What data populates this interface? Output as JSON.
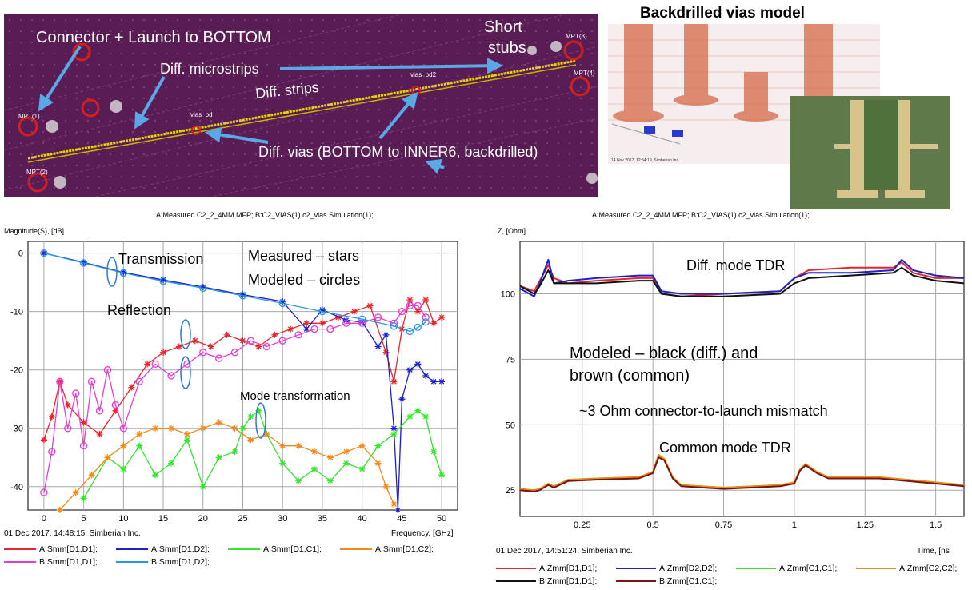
{
  "pcb": {
    "labels": {
      "connector": "Connector + Launch to BOTTOM",
      "microstrips": "Diff. microstrips",
      "strips": "Diff. strips",
      "short": "Short",
      "stubs": "stubs",
      "vias": "Diff. vias (BOTTOM to INNER6, backdrilled)",
      "via_bd": "vias_bd",
      "via_bd2": "vias_bd2",
      "mpt1": "MPT(1)",
      "mpt2": "MPT(2)",
      "mpt3": "MPT(3)",
      "mpt4": "MPT(4)"
    },
    "colors": {
      "board": "#5a1c54",
      "trace": "#e8d400",
      "arrow": "#5aa8e6",
      "text": "#ffffff"
    }
  },
  "model": {
    "title": "Backdrilled vias model",
    "timestamp": "14 Nov 2017, 12:54:19, Simberian Inc."
  },
  "left_chart": {
    "header": "A:Measured.C2_2_4MM.MFP; B:C2_VIAS(1).c2_vias.Simulation(1);",
    "ylabel": "Magnitude(S), [dB]",
    "xlabel": "Frequency, [GHz]",
    "footer": "01 Dec 2017, 14:48:15, Simberian Inc.",
    "annotations": {
      "transmission": "Transmission",
      "measured": "Measured – stars",
      "modeled": "Modeled – circles",
      "reflection": "Reflection",
      "mode": "Mode transformation"
    },
    "legend": [
      {
        "label": "A:Smm[D1,D1];",
        "color": "#e8262b",
        "marker": "star"
      },
      {
        "label": "A:Smm[D1,D2];",
        "color": "#1c22c8",
        "marker": "star"
      },
      {
        "label": "A:Smm[D1,C1];",
        "color": "#32e62a",
        "marker": "star"
      },
      {
        "label": "A:Smm[D1,C2];",
        "color": "#f08a1c",
        "marker": "star"
      },
      {
        "label": "B:Smm[D1,D1];",
        "color": "#e63ad2",
        "marker": "circle"
      },
      {
        "label": "B:Smm[D1,D2];",
        "color": "#2a96e6",
        "marker": "circle"
      }
    ]
  },
  "right_chart": {
    "header": "A:Measured.C2_2_4MM.MFP; B:C2_VIAS(1).c2_vias.Simulation(1);",
    "ylabel": "Z, [Ohm]",
    "xlabel": "Time, [ns",
    "footer": "01 Dec 2017, 14:51:24, Simberian Inc.",
    "annotations": {
      "diff": "Diff. mode TDR",
      "modeled1": "Modeled – black (diff.) and",
      "modeled2": "brown (common)",
      "mismatch": "~3 Ohm connector-to-launch mismatch",
      "common": "Common mode TDR"
    },
    "legend": [
      {
        "label": "A:Zmm[D1,D1];",
        "color": "#e8262b"
      },
      {
        "label": "A:Zmm[D2,D2];",
        "color": "#1c22c8"
      },
      {
        "label": "A:Zmm[C1,C1];",
        "color": "#32e62a"
      },
      {
        "label": "A:Zmm[C2,C2];",
        "color": "#f08a1c"
      },
      {
        "label": "B:Zmm[D1,D1];",
        "color": "#111111"
      },
      {
        "label": "B:Zmm[C1,C1];",
        "color": "#7a1414"
      }
    ]
  },
  "chart_data": [
    {
      "type": "line",
      "xlabel": "Frequency, [GHz]",
      "ylabel": "Magnitude(S), [dB]",
      "xlim": [
        -2,
        52
      ],
      "ylim": [
        -44,
        2
      ],
      "xticks": [
        0,
        5,
        10,
        15,
        20,
        25,
        30,
        35,
        40,
        45,
        50
      ],
      "yticks": [
        0,
        -10,
        -20,
        -30,
        -40
      ],
      "grid": true,
      "series": [
        {
          "name": "A:Smm[D1,D1];",
          "color": "#e8262b",
          "marker": "star",
          "x": [
            0,
            1,
            2,
            3,
            5,
            7,
            9,
            11,
            13,
            15,
            17,
            19,
            21,
            23,
            25,
            27,
            29,
            31,
            33,
            35,
            37,
            39,
            41,
            43,
            44,
            45,
            46,
            47,
            48,
            49,
            50
          ],
          "y": [
            -32,
            -28,
            -22,
            -26,
            -29,
            -31,
            -27,
            -23,
            -19,
            -17,
            -16,
            -15,
            -16,
            -14,
            -15,
            -16,
            -14,
            -13,
            -12,
            -12,
            -11,
            -10,
            -9,
            -17,
            -22,
            -13,
            -8,
            -10,
            -8,
            -12,
            -11
          ]
        },
        {
          "name": "A:Smm[D1,D2];",
          "color": "#1c22c8",
          "marker": "star",
          "x": [
            0,
            5,
            10,
            15,
            20,
            25,
            30,
            33,
            35,
            38,
            40,
            42,
            43,
            44,
            44.5,
            45,
            46,
            47,
            48,
            49,
            50
          ],
          "y": [
            0,
            -1.6,
            -3.3,
            -4.6,
            -5.8,
            -7.1,
            -8.3,
            -13,
            -9.7,
            -11.5,
            -11.8,
            -16,
            -14,
            -30,
            -44,
            -25,
            -20,
            -19,
            -21,
            -22,
            -22
          ]
        },
        {
          "name": "A:Smm[D1,C1];",
          "color": "#32e62a",
          "marker": "star",
          "x": [
            5,
            8,
            10,
            12,
            14,
            16,
            18,
            20,
            22,
            24,
            25,
            26,
            27,
            28,
            30,
            32,
            34,
            36,
            38,
            40,
            42,
            44,
            46,
            47,
            48,
            49,
            50
          ],
          "y": [
            -42,
            -35,
            -37,
            -33,
            -38,
            -36,
            -32,
            -40,
            -35,
            -34,
            -30,
            -28,
            -27,
            -31,
            -36,
            -39,
            -37,
            -39,
            -36,
            -37,
            -33,
            -31,
            -28,
            -27,
            -28,
            -34,
            -38
          ]
        },
        {
          "name": "A:Smm[D1,C2];",
          "color": "#f08a1c",
          "marker": "star",
          "x": [
            2,
            4,
            6,
            8,
            10,
            12,
            14,
            16,
            18,
            20,
            22,
            24,
            26,
            28,
            30,
            32,
            34,
            36,
            38,
            40,
            42,
            43,
            44
          ],
          "y": [
            -44,
            -41,
            -38,
            -35,
            -33,
            -31,
            -30,
            -30,
            -31,
            -30,
            -29,
            -30,
            -32,
            -31,
            -33,
            -33,
            -34,
            -35,
            -34,
            -33,
            -36,
            -40,
            -43
          ]
        },
        {
          "name": "B:Smm[D1,D1];",
          "color": "#e63ad2",
          "marker": "circle",
          "x": [
            0,
            1,
            2,
            3,
            4,
            5,
            6,
            7,
            8,
            9,
            10,
            12,
            14,
            16,
            18,
            20,
            22,
            24,
            26,
            28,
            30,
            32,
            34,
            36,
            38,
            40,
            42,
            44,
            45,
            46,
            47,
            48
          ],
          "y": [
            -41,
            -34,
            -22,
            -30,
            -24,
            -33,
            -22,
            -27,
            -20,
            -26,
            -30,
            -22,
            -19,
            -21,
            -19,
            -17,
            -18,
            -17,
            -15,
            -16,
            -15,
            -14,
            -13,
            -13,
            -12,
            -12,
            -11,
            -12,
            -10,
            -9,
            -9,
            -11
          ]
        },
        {
          "name": "B:Smm[D1,D2];",
          "color": "#2a96e6",
          "marker": "circle",
          "x": [
            0,
            5,
            10,
            15,
            20,
            25,
            30,
            35,
            40,
            44,
            46,
            47,
            48
          ],
          "y": [
            0,
            -1.7,
            -3.4,
            -4.8,
            -6.0,
            -7.3,
            -8.6,
            -10.0,
            -11.3,
            -12.5,
            -13.4,
            -12.7,
            -11.8
          ]
        }
      ]
    },
    {
      "type": "line",
      "xlabel": "Time, [ns",
      "ylabel": "Z, [Ohm]",
      "xlim": [
        0.03,
        1.6
      ],
      "ylim": [
        15,
        120
      ],
      "xticks": [
        0.25,
        0.5,
        0.75,
        1,
        1.25,
        1.5
      ],
      "yticks": [
        25,
        50,
        75,
        100
      ],
      "grid": true,
      "series": [
        {
          "name": "A:Zmm[D1,D1];",
          "color": "#e8262b",
          "x": [
            0.03,
            0.08,
            0.1,
            0.13,
            0.15,
            0.2,
            0.3,
            0.45,
            0.5,
            0.53,
            0.6,
            0.75,
            0.95,
            1.0,
            1.05,
            1.2,
            1.35,
            1.38,
            1.42,
            1.5,
            1.6
          ],
          "y": [
            103,
            101,
            105,
            111,
            106,
            104,
            105,
            106,
            106,
            100,
            99,
            100,
            101,
            106,
            109,
            110,
            110,
            112,
            108,
            106,
            106
          ]
        },
        {
          "name": "A:Zmm[D2,D2];",
          "color": "#1c22c8",
          "x": [
            0.03,
            0.08,
            0.1,
            0.13,
            0.15,
            0.2,
            0.3,
            0.45,
            0.5,
            0.53,
            0.6,
            0.75,
            0.95,
            1.0,
            1.05,
            1.2,
            1.35,
            1.38,
            1.42,
            1.5,
            1.6
          ],
          "y": [
            102,
            99,
            104,
            113,
            104,
            105,
            106,
            107,
            107,
            101,
            100,
            100,
            101,
            106,
            108,
            108,
            109,
            113,
            109,
            107,
            106
          ]
        },
        {
          "name": "B:Zmm[D1,D1];",
          "color": "#111111",
          "x": [
            0.03,
            0.08,
            0.1,
            0.13,
            0.15,
            0.2,
            0.3,
            0.45,
            0.5,
            0.53,
            0.6,
            0.75,
            0.95,
            1.0,
            1.05,
            1.2,
            1.35,
            1.38,
            1.42,
            1.5,
            1.6
          ],
          "y": [
            103,
            100,
            103,
            109,
            104,
            104,
            104,
            105,
            105,
            100,
            99,
            99,
            100,
            104,
            106,
            107,
            108,
            110,
            107,
            105,
            104
          ]
        },
        {
          "name": "A:Zmm[C1,C1];",
          "color": "#32e62a",
          "x": [
            0.03,
            0.08,
            0.1,
            0.13,
            0.15,
            0.2,
            0.3,
            0.45,
            0.5,
            0.52,
            0.54,
            0.57,
            0.6,
            0.75,
            0.95,
            1.0,
            1.02,
            1.04,
            1.08,
            1.12,
            1.3,
            1.45,
            1.6
          ],
          "y": [
            25.5,
            25,
            25.5,
            27,
            26.5,
            29,
            29.5,
            30,
            32,
            38,
            37,
            30,
            27,
            26,
            27,
            28,
            33,
            35,
            32,
            30,
            30,
            28.5,
            27
          ]
        },
        {
          "name": "A:Zmm[C2,C2];",
          "color": "#f08a1c",
          "x": [
            0.03,
            0.08,
            0.1,
            0.13,
            0.15,
            0.2,
            0.3,
            0.45,
            0.5,
            0.52,
            0.54,
            0.57,
            0.6,
            0.75,
            0.95,
            1.0,
            1.02,
            1.04,
            1.08,
            1.12,
            1.3,
            1.45,
            1.6
          ],
          "y": [
            25.5,
            25,
            25.5,
            27.5,
            26.5,
            29,
            29.5,
            30,
            32,
            38.5,
            37,
            30,
            27,
            26,
            27,
            28,
            33,
            35,
            32,
            30,
            30,
            28.5,
            27
          ]
        },
        {
          "name": "B:Zmm[C1,C1];",
          "color": "#7a1414",
          "x": [
            0.03,
            0.08,
            0.1,
            0.13,
            0.15,
            0.2,
            0.3,
            0.45,
            0.5,
            0.52,
            0.54,
            0.57,
            0.6,
            0.75,
            0.95,
            1.0,
            1.02,
            1.04,
            1.08,
            1.12,
            1.3,
            1.45,
            1.6
          ],
          "y": [
            25,
            24.5,
            25,
            27,
            26,
            28.5,
            29,
            29.5,
            31.5,
            37.5,
            36.5,
            29.5,
            26.5,
            25.5,
            26.5,
            27.5,
            32.5,
            34.5,
            31.5,
            29.5,
            29.5,
            28,
            26.5
          ]
        }
      ]
    }
  ]
}
